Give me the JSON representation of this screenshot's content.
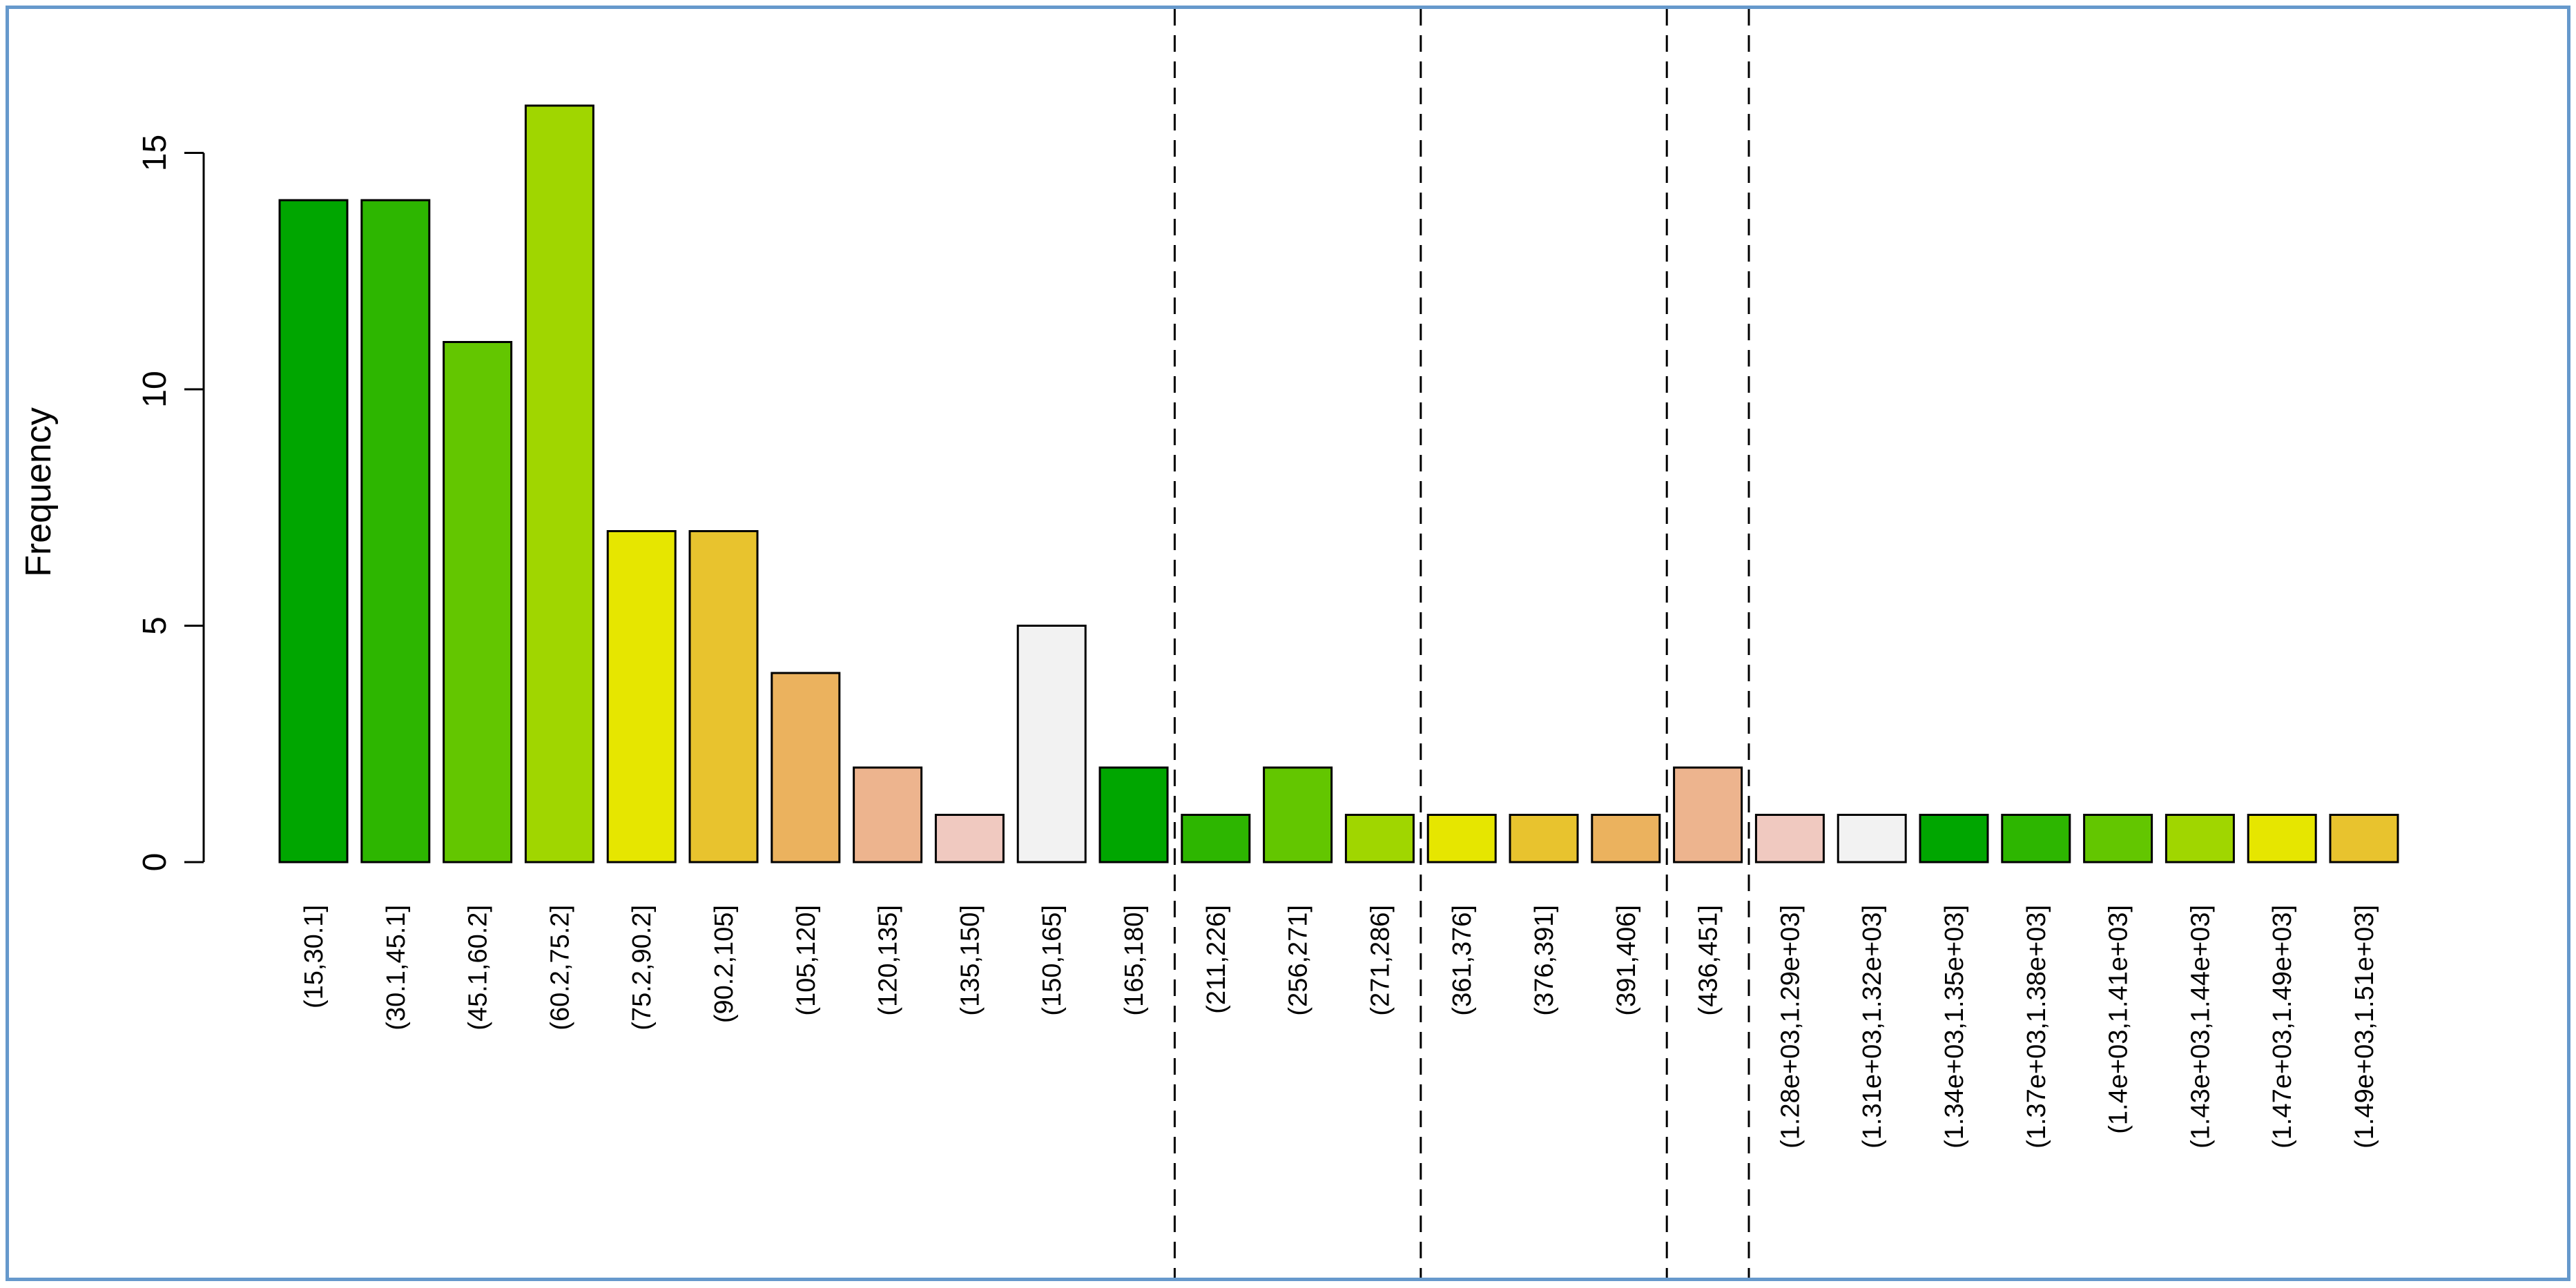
{
  "chart_data": {
    "type": "bar",
    "ylabel": "Frequency",
    "xlabel": "",
    "title": "",
    "ylim": [
      0,
      16
    ],
    "yticks": [
      0,
      5,
      10,
      15
    ],
    "grid": false,
    "categories": [
      "(15,30.1]",
      "(30.1,45.1]",
      "(45.1,60.2]",
      "(60.2,75.2]",
      "(75.2,90.2]",
      "(90.2,105]",
      "(105,120]",
      "(120,135]",
      "(135,150]",
      "(150,165]",
      "(165,180]",
      "(211,226]",
      "(256,271]",
      "(271,286]",
      "(361,376]",
      "(376,391]",
      "(391,406]",
      "(436,451]",
      "(1.28e+03,1.29e+03]",
      "(1.31e+03,1.32e+03]",
      "(1.34e+03,1.35e+03]",
      "(1.37e+03,1.38e+03]",
      "(1.4e+03,1.41e+03]",
      "(1.43e+03,1.44e+03]",
      "(1.47e+03,1.49e+03]",
      "(1.49e+03,1.51e+03]"
    ],
    "values": [
      14,
      14,
      11,
      16,
      7,
      7,
      4,
      2,
      1,
      5,
      2,
      1,
      2,
      1,
      1,
      1,
      1,
      2,
      1,
      1,
      1,
      1,
      1,
      1,
      1,
      1
    ],
    "colors": [
      "#00a600",
      "#2db600",
      "#63c600",
      "#a0d600",
      "#e6e600",
      "#e8c32e",
      "#ebb25e",
      "#edb48e",
      "#f0c9c0",
      "#f2f2f2",
      "#00a600",
      "#2db600",
      "#63c600",
      "#a0d600",
      "#e6e600",
      "#e8c32e",
      "#ebb25e",
      "#edb48e",
      "#f0c9c0",
      "#f2f2f2",
      "#00a600",
      "#2db600",
      "#63c600",
      "#a0d600",
      "#e6e600",
      "#e8c32e"
    ],
    "dashed_breaks_after": [
      10,
      13,
      16,
      17
    ]
  }
}
